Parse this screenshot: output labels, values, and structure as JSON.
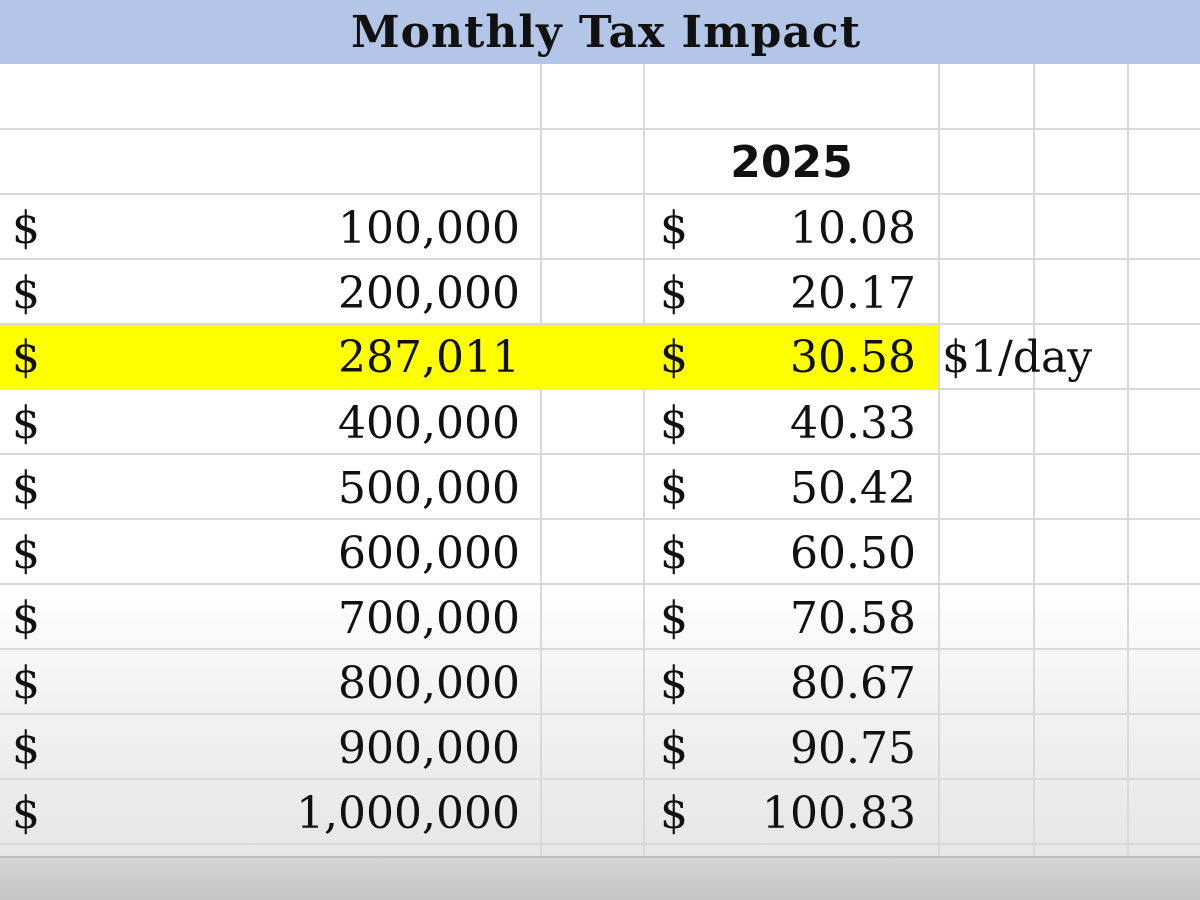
{
  "title": "Monthly Tax Impact",
  "year_header": "2025",
  "currency_symbol": "$",
  "colors": {
    "title_bar": "#b4c6e7",
    "highlight": "#ffff00",
    "gridline": "#d9d9d9"
  },
  "rows": [
    {
      "value": "100,000",
      "tax": "10.08",
      "note": ""
    },
    {
      "value": "200,000",
      "tax": "20.17",
      "note": ""
    },
    {
      "value": "287,011",
      "tax": "30.58",
      "note": "$1/day",
      "highlighted": true
    },
    {
      "value": "400,000",
      "tax": "40.33",
      "note": ""
    },
    {
      "value": "500,000",
      "tax": "50.42",
      "note": ""
    },
    {
      "value": "600,000",
      "tax": "60.50",
      "note": ""
    },
    {
      "value": "700,000",
      "tax": "70.58",
      "note": ""
    },
    {
      "value": "800,000",
      "tax": "80.67",
      "note": ""
    },
    {
      "value": "900,000",
      "tax": "90.75",
      "note": ""
    },
    {
      "value": "1,000,000",
      "tax": "100.83",
      "note": ""
    }
  ]
}
